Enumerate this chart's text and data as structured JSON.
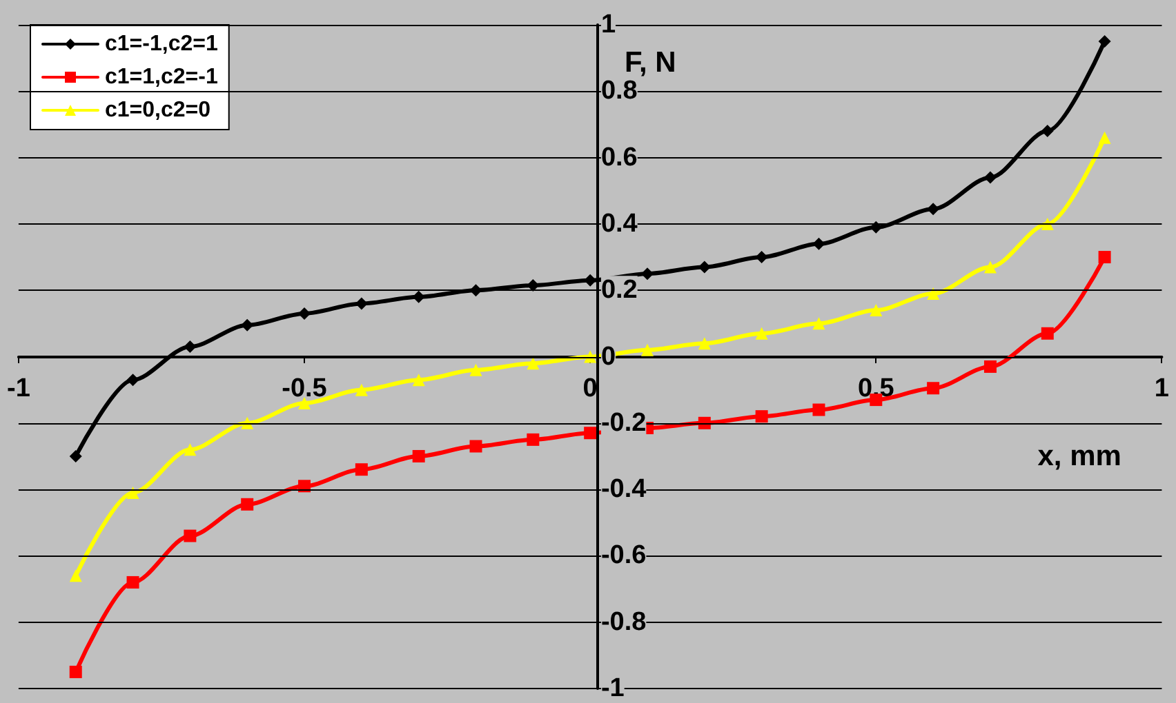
{
  "chart_data": {
    "type": "line",
    "xlabel": "x, mm",
    "ylabel": "F, N",
    "x": [
      -0.9,
      -0.8,
      -0.7,
      -0.6,
      -0.5,
      -0.4,
      -0.3,
      -0.2,
      -0.1,
      0,
      0.1,
      0.2,
      0.3,
      0.4,
      0.5,
      0.6,
      0.7,
      0.8,
      0.9
    ],
    "series": [
      {
        "name": "c1=-1,c2=1",
        "color": "#000000",
        "marker": "diamond",
        "values": [
          -0.3,
          -0.07,
          0.03,
          0.095,
          0.13,
          0.16,
          0.18,
          0.2,
          0.215,
          0.23,
          0.25,
          0.27,
          0.3,
          0.34,
          0.39,
          0.445,
          0.54,
          0.68,
          0.95
        ]
      },
      {
        "name": "c1=1,c2=-1",
        "color": "#ff0000",
        "marker": "square",
        "values": [
          -0.95,
          -0.68,
          -0.54,
          -0.445,
          -0.39,
          -0.34,
          -0.3,
          -0.27,
          -0.25,
          -0.23,
          -0.215,
          -0.2,
          -0.18,
          -0.16,
          -0.13,
          -0.095,
          -0.03,
          0.07,
          0.3
        ]
      },
      {
        "name": "c1=0,c2=0",
        "color": "#ffff00",
        "marker": "triangle",
        "values": [
          -0.66,
          -0.41,
          -0.28,
          -0.2,
          -0.14,
          -0.1,
          -0.07,
          -0.04,
          -0.02,
          0,
          0.02,
          0.04,
          0.07,
          0.1,
          0.14,
          0.19,
          0.27,
          0.4,
          0.66
        ]
      }
    ],
    "xlim": [
      -1,
      1
    ],
    "xticks": [
      -1,
      -0.5,
      0,
      0.5,
      1
    ],
    "ylim": [
      -1,
      1
    ],
    "yticks": [
      -1,
      -0.8,
      -0.6,
      -0.4,
      -0.2,
      0,
      0.2,
      0.4,
      0.6,
      0.8,
      1
    ],
    "grid": "y",
    "legend": "top left",
    "line_style": "solid"
  }
}
